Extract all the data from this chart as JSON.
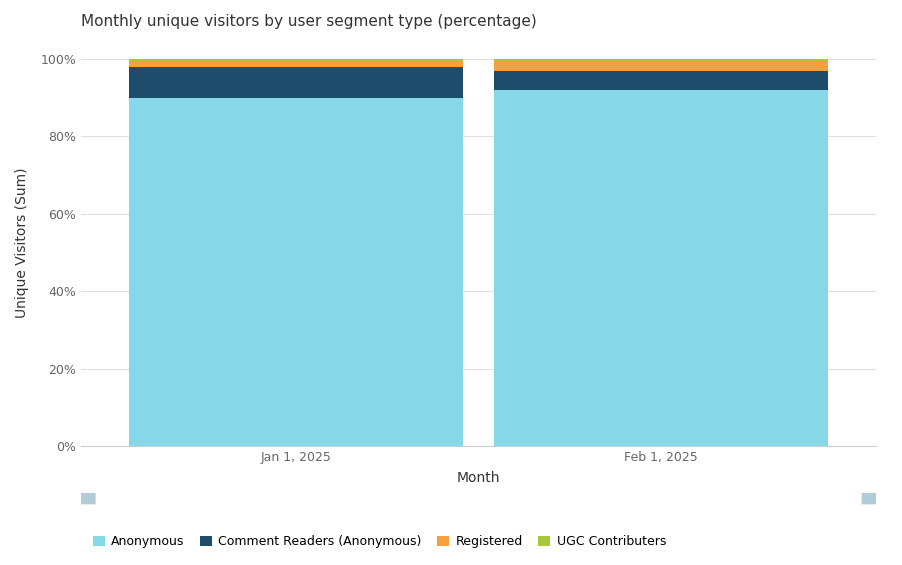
{
  "title": "Monthly unique visitors by user segment type (percentage)",
  "xlabel": "Month",
  "ylabel": "Unique Visitors (Sum)",
  "categories": [
    "Jan 1, 2025",
    "Feb 1, 2025"
  ],
  "segments": [
    "Anonymous",
    "Comment Readers (Anonymous)",
    "Registered",
    "UGC Contributers"
  ],
  "values": [
    [
      90.0,
      8.0,
      1.5,
      0.5
    ],
    [
      92.0,
      5.0,
      2.5,
      0.5
    ]
  ],
  "colors": [
    "#86D8E8",
    "#1E4D6B",
    "#F5A040",
    "#A8C838"
  ],
  "background_color": "#ffffff",
  "plot_bg_color": "#ffffff",
  "grid_color": "#e0e0e0",
  "yticks": [
    0,
    20,
    40,
    60,
    80,
    100
  ],
  "ytick_labels": [
    "0%",
    "20%",
    "40%",
    "60%",
    "80%",
    "100%"
  ],
  "title_fontsize": 11,
  "axis_label_fontsize": 10,
  "tick_fontsize": 9,
  "legend_fontsize": 9,
  "bar_width": 0.42,
  "x_positions": [
    0.27,
    0.73
  ],
  "xlim": [
    0.0,
    1.0
  ],
  "ylim": [
    0,
    105
  ],
  "scroll_color": "#daeef9",
  "scroll_handle_color": "#b0ccd8"
}
